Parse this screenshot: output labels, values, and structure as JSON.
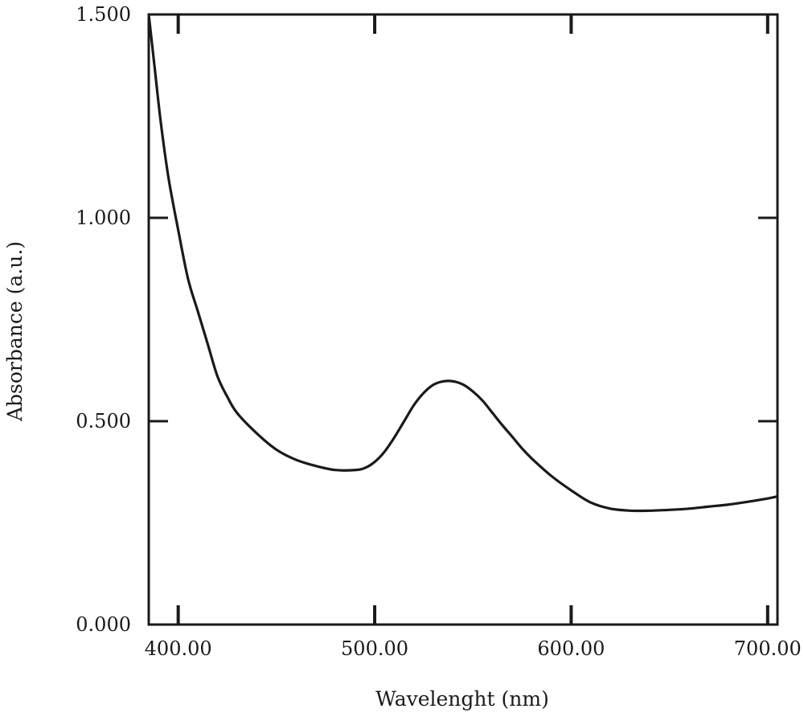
{
  "chart_data": {
    "type": "line",
    "title": "",
    "xlabel": "Wavelenght (nm)",
    "ylabel": "Absorbance (a.u.)",
    "xlim": [
      385,
      705
    ],
    "ylim": [
      0,
      1.5
    ],
    "x_ticks": [
      400,
      500,
      600,
      700
    ],
    "x_tick_labels": [
      "400.00",
      "500.00",
      "600.00",
      "700.00"
    ],
    "y_ticks": [
      0,
      0.5,
      1.0,
      1.5
    ],
    "y_tick_labels": [
      "0.000",
      "0.500",
      "1.000",
      "1.500"
    ],
    "grid": false,
    "legend": "none",
    "line_color": "#1a1a1a",
    "series": [
      {
        "x": [
          385,
          388,
          391,
          395,
          400,
          405,
          410,
          415,
          420,
          425,
          430,
          440,
          450,
          460,
          470,
          480,
          490,
          495,
          500,
          505,
          510,
          515,
          520,
          525,
          530,
          535,
          540,
          545,
          550,
          555,
          560,
          565,
          570,
          575,
          580,
          590,
          600,
          610,
          620,
          630,
          640,
          650,
          660,
          670,
          680,
          690,
          700,
          705
        ],
        "y": [
          1.5,
          1.37,
          1.24,
          1.1,
          0.97,
          0.85,
          0.77,
          0.69,
          0.61,
          0.56,
          0.52,
          0.47,
          0.43,
          0.405,
          0.39,
          0.38,
          0.38,
          0.385,
          0.4,
          0.425,
          0.46,
          0.5,
          0.54,
          0.57,
          0.59,
          0.598,
          0.598,
          0.59,
          0.573,
          0.55,
          0.52,
          0.49,
          0.462,
          0.433,
          0.408,
          0.365,
          0.33,
          0.3,
          0.285,
          0.28,
          0.28,
          0.282,
          0.285,
          0.29,
          0.295,
          0.302,
          0.31,
          0.315
        ]
      }
    ]
  }
}
